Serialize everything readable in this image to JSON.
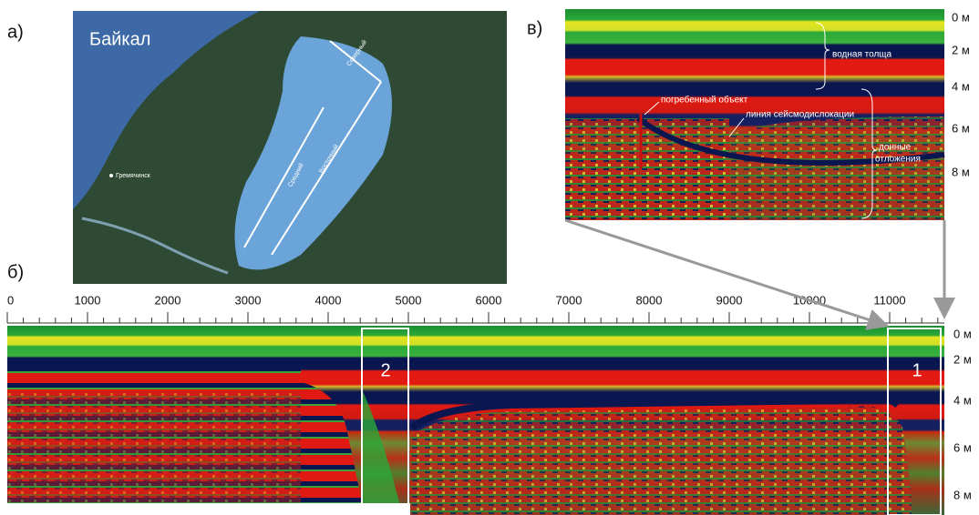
{
  "panel_a": {
    "label": "а)",
    "title": "Байкал",
    "map_labels": [
      "Северный",
      "Средний",
      "Восточный",
      "Гремячинск"
    ]
  },
  "panel_v": {
    "label": "в)",
    "depth_labels": [
      "0 м",
      "2 м",
      "4 м",
      "6 м",
      "8 м"
    ],
    "annotations": [
      "водная толща",
      "погребенный объект",
      "линия сейсмодислокации",
      "донные",
      "отложения"
    ]
  },
  "panel_b": {
    "label": "б)",
    "distance_ticks": [
      0,
      1000,
      2000,
      3000,
      4000,
      5000,
      6000,
      7000,
      8000,
      9000,
      10000,
      11000
    ],
    "depth_labels": [
      "0 м",
      "2 м",
      "4 м",
      "6 м",
      "8 м"
    ],
    "boxes": [
      "2",
      "1"
    ]
  }
}
